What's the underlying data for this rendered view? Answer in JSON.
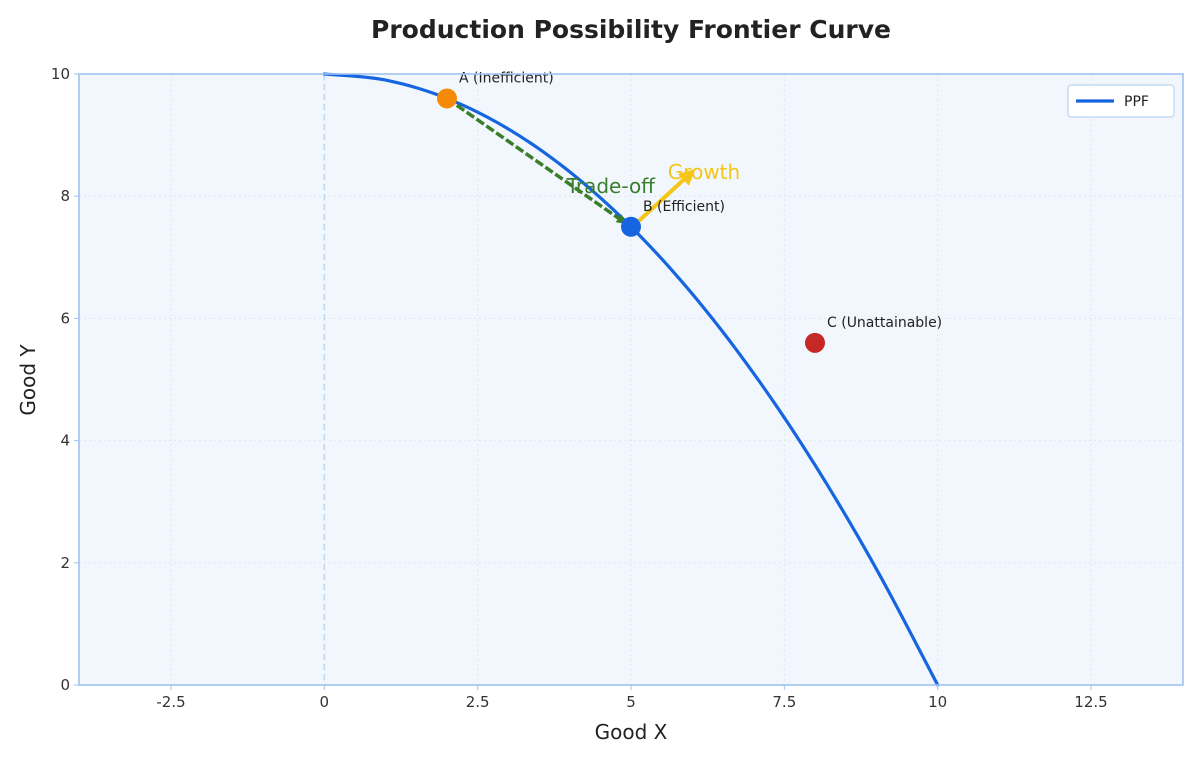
{
  "chart_data": {
    "type": "line",
    "title": "Production Possibility Frontier Curve",
    "xlabel": "Good X",
    "ylabel": "Good Y",
    "xlim": [
      -4,
      14
    ],
    "ylim": [
      0,
      10
    ],
    "xticks": [
      -2.5,
      0,
      2.5,
      5,
      7.5,
      10,
      12.5
    ],
    "xtick_labels": [
      "-2.5",
      "0",
      "2.5",
      "5",
      "7.5",
      "10",
      "12.5"
    ],
    "yticks": [
      0,
      2,
      4,
      6,
      8,
      10
    ],
    "ytick_labels": [
      "0",
      "2",
      "4",
      "6",
      "8",
      "10"
    ],
    "grid": true,
    "legend_position": "top-right",
    "series": [
      {
        "name": "PPF",
        "color": "#1565e0",
        "x": [
          0,
          1,
          2,
          3,
          4,
          5,
          6,
          7,
          8,
          9,
          10
        ],
        "y": [
          10,
          9.9,
          9.6,
          9.1,
          8.4,
          7.5,
          6.4,
          5.1,
          3.6,
          1.9,
          0
        ]
      }
    ],
    "points": [
      {
        "label": "A (Inefficient)",
        "x": 2,
        "y": 9.6,
        "color": "#f58a07"
      },
      {
        "label": "B (Efficient)",
        "x": 5,
        "y": 7.5,
        "color": "#1565e0"
      },
      {
        "label": "C (Unattainable)",
        "x": 8,
        "y": 5.6,
        "color": "#c62828"
      }
    ],
    "annotations": [
      {
        "text": "Trade-off",
        "color": "#3a7d2a",
        "from": [
          2,
          9.6
        ],
        "to": [
          5,
          7.5
        ]
      },
      {
        "text": "Growth",
        "color": "#f5c518",
        "from": [
          5,
          7.5
        ],
        "to": [
          6,
          8.4
        ]
      }
    ],
    "vline": {
      "x": 0,
      "color": "#bcd6f5"
    }
  }
}
